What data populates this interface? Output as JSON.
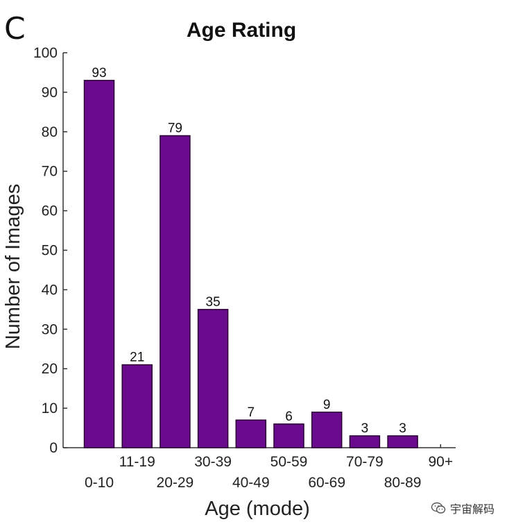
{
  "panel_label": "C",
  "watermark": {
    "text": "宇宙解码"
  },
  "chart_data": {
    "type": "bar",
    "title": "Age Rating",
    "xlabel": "Age (mode)",
    "ylabel": "Number of Images",
    "categories": [
      "0-10",
      "11-19",
      "20-29",
      "30-39",
      "40-49",
      "50-59",
      "60-69",
      "70-79",
      "80-89",
      "90+"
    ],
    "values": [
      93,
      21,
      79,
      35,
      7,
      6,
      9,
      3,
      3,
      0
    ],
    "data_labels": [
      "93",
      "21",
      "79",
      "35",
      "7",
      "6",
      "9",
      "3",
      "3",
      ""
    ],
    "ylim": [
      0,
      100
    ],
    "yticks": [
      "0",
      "10",
      "20",
      "30",
      "40",
      "50",
      "60",
      "70",
      "80",
      "90",
      "100"
    ],
    "bar_color": "#6a0a8c",
    "grid": false,
    "legend": "none"
  }
}
